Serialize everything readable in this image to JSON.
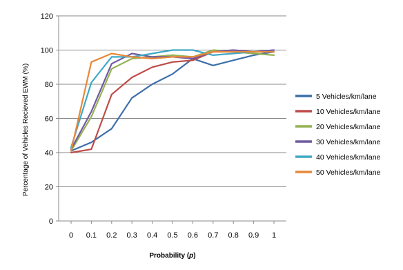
{
  "chart_data": {
    "type": "line",
    "title": "",
    "xlabel": "Probability (",
    "xlabel_var": "p",
    "xlabel_end": ")",
    "ylabel": "Percentage of Vehicles Recieved EWM (%)",
    "x": [
      0,
      0.1,
      0.2,
      0.3,
      0.4,
      0.5,
      0.6,
      0.7,
      0.8,
      0.9,
      1
    ],
    "x_tick_labels": [
      "0",
      "0.1",
      "0.2",
      "0.3",
      "0.4",
      "0.5",
      "0.6",
      "0.7",
      "0.8",
      "0.9",
      "1"
    ],
    "xlim": [
      0,
      1
    ],
    "ylim": [
      0,
      120
    ],
    "y_ticks": [
      0,
      20,
      40,
      60,
      80,
      100,
      120
    ],
    "y_tick_labels": [
      "0",
      "20",
      "40",
      "60",
      "80",
      "100",
      "120"
    ],
    "grid": "horizontal",
    "legend_position": "right",
    "series": [
      {
        "name": "5 Vehicles/km/lane",
        "color": "#3d6ea8",
        "values": [
          41,
          46,
          54,
          72,
          80,
          86,
          95,
          91,
          94,
          97,
          99
        ]
      },
      {
        "name": "10 Vehicles/km/lane",
        "color": "#be4b48",
        "values": [
          40,
          42,
          74,
          84,
          90,
          93,
          94,
          99,
          99,
          99,
          99
        ]
      },
      {
        "name": "20 Vehicles/km/lane",
        "color": "#94b254",
        "values": [
          41,
          61,
          89,
          95,
          96,
          97,
          96,
          100,
          99,
          98,
          97
        ]
      },
      {
        "name": "30 Vehicles/km/lane",
        "color": "#7159a1",
        "values": [
          42,
          64,
          92,
          98,
          96,
          96,
          95,
          99,
          100,
          99,
          100
        ]
      },
      {
        "name": "40 Vehicles/km/lane",
        "color": "#3fa9c5",
        "values": [
          43,
          81,
          96,
          96,
          98,
          100,
          100,
          97,
          98,
          99,
          99
        ]
      },
      {
        "name": "50 Vehicles/km/lane",
        "color": "#e8883a",
        "values": [
          41,
          93,
          98,
          96,
          95,
          96,
          96,
          99,
          99,
          99,
          99
        ]
      }
    ]
  }
}
